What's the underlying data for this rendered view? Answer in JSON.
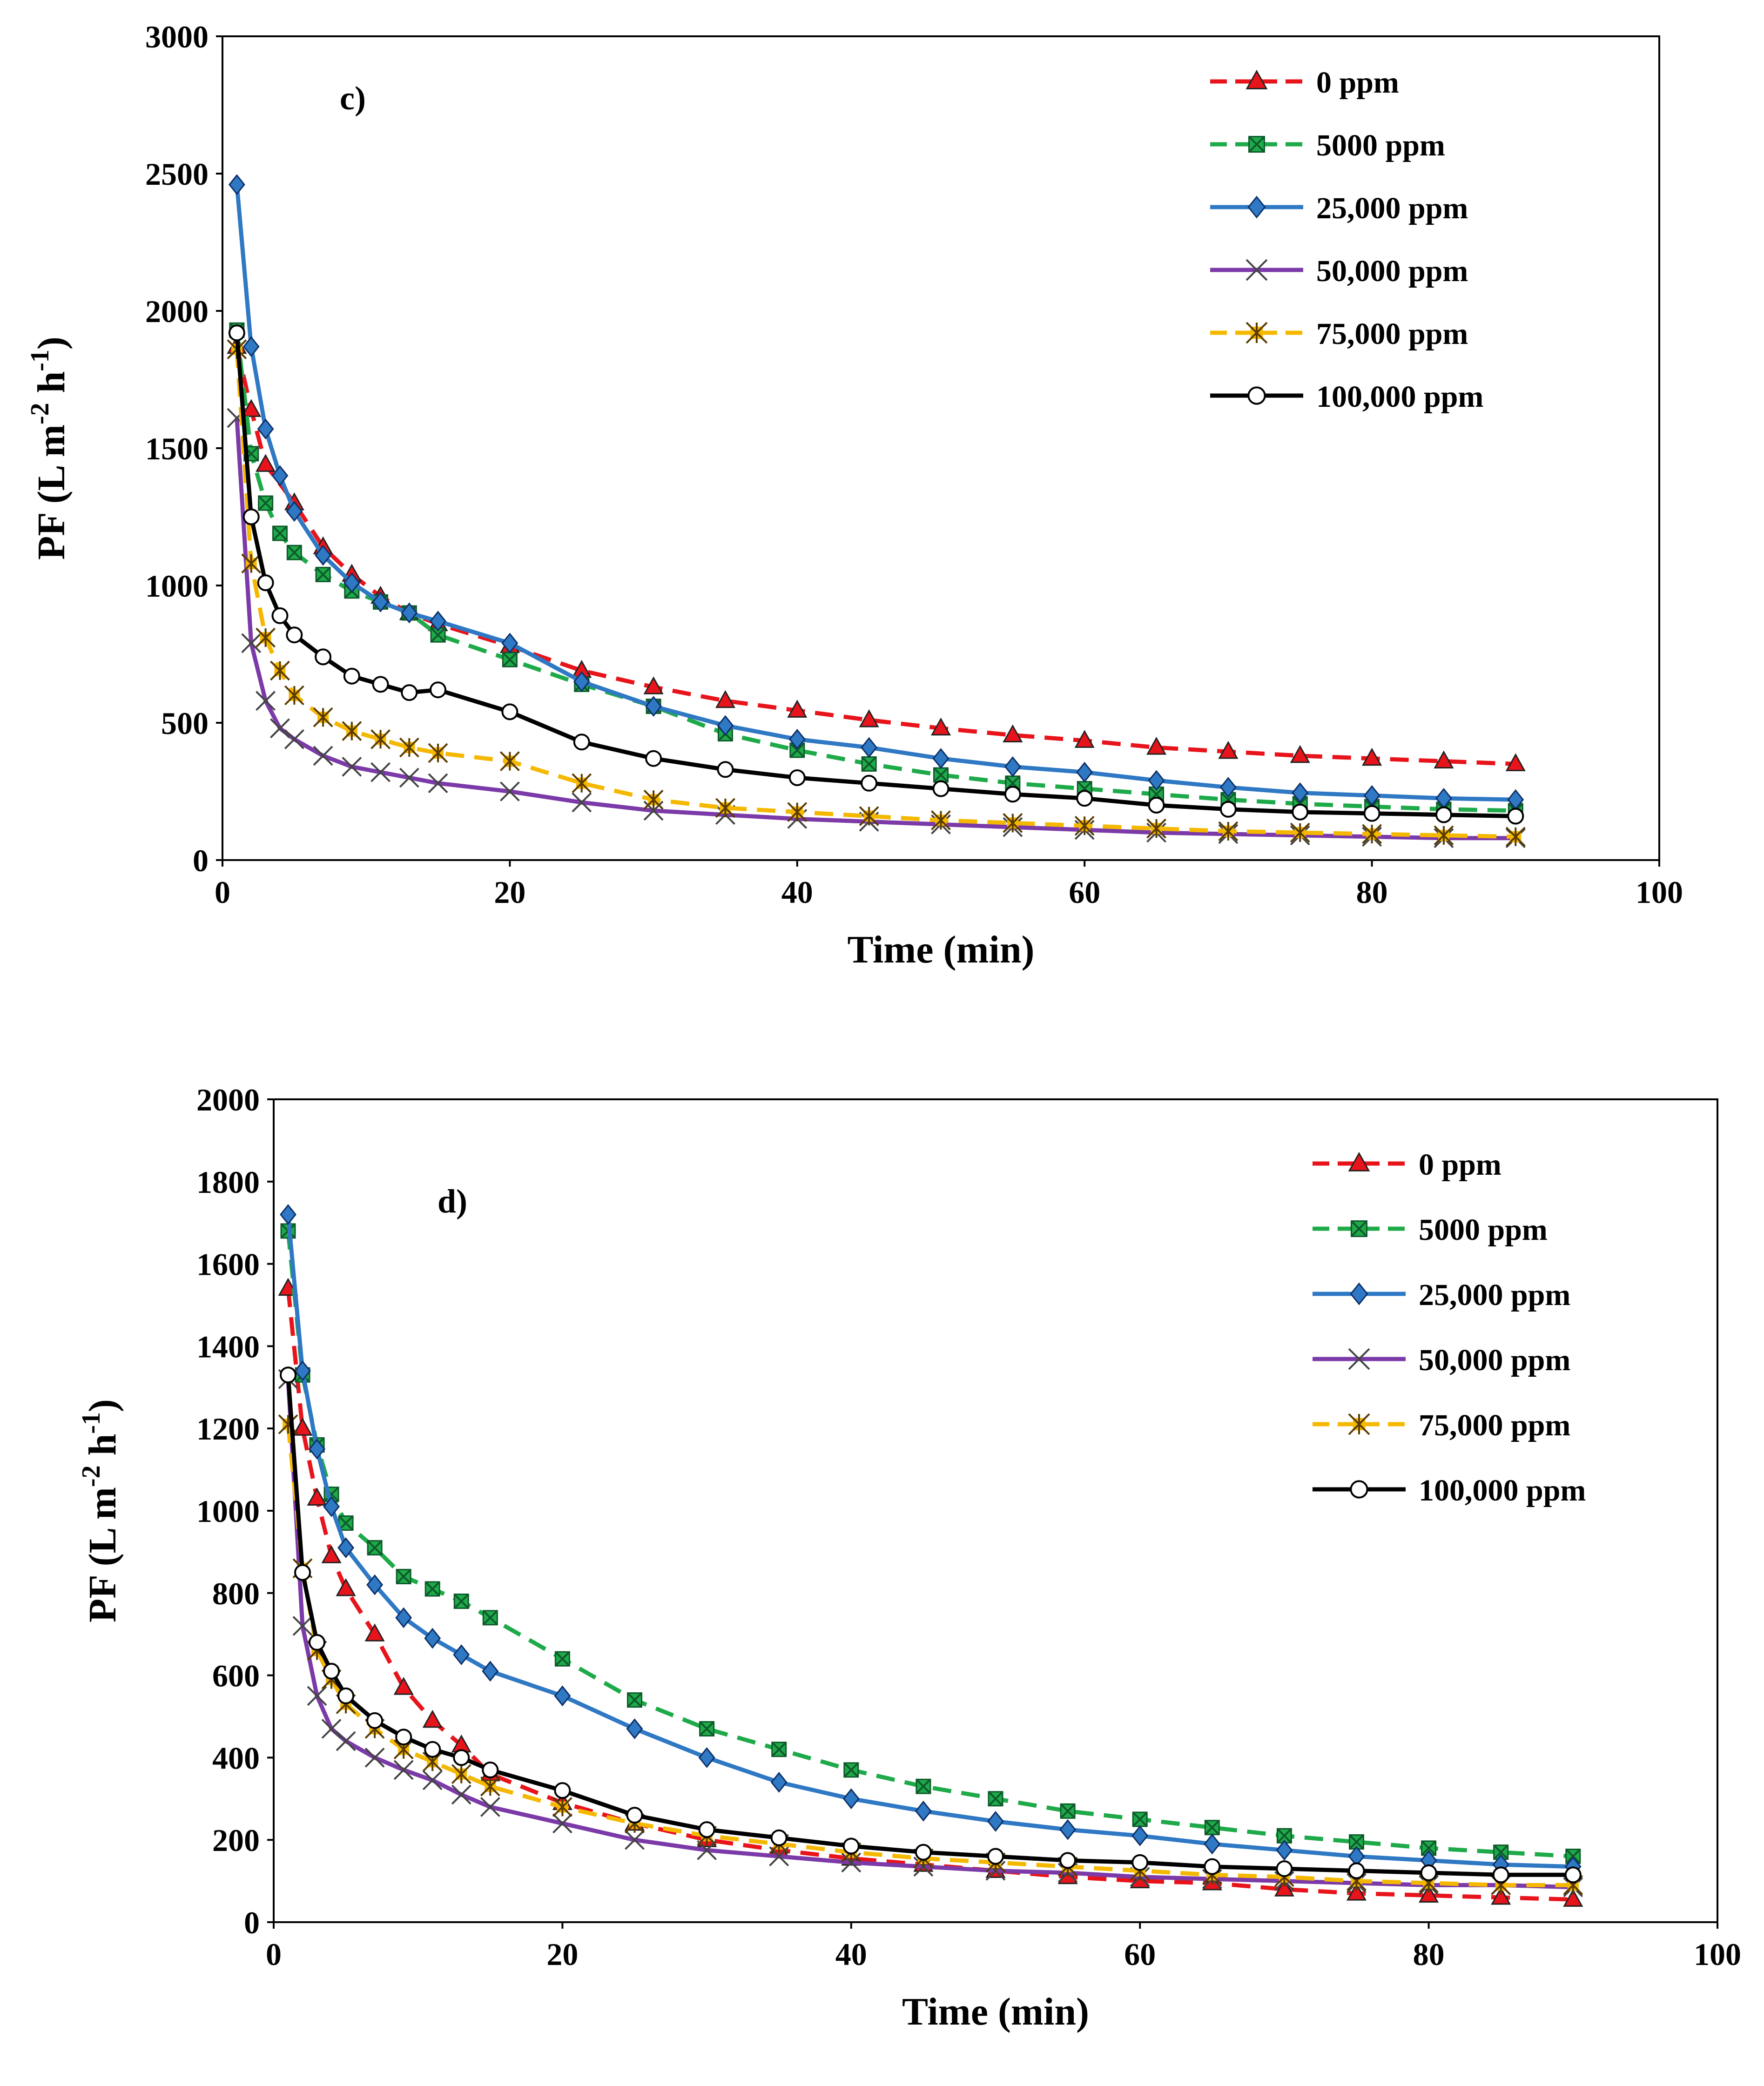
{
  "chart_data": [
    {
      "type": "line",
      "panel_label": "c)",
      "xlabel": "Time (min)",
      "ylabel": {
        "main": "PF (L m",
        "sup1": "-2",
        "mid": " h",
        "sup2": "-1",
        "end": ")"
      },
      "xlim": [
        0,
        100
      ],
      "ylim": [
        0,
        3000
      ],
      "xticks": [
        "0",
        "20",
        "40",
        "60",
        "80",
        "100"
      ],
      "yticks": [
        "0",
        "500",
        "1000",
        "1500",
        "2000",
        "2500",
        "3000"
      ],
      "grid": false,
      "legend": "top-right",
      "series": [
        {
          "name": "0 ppm",
          "color": "#e8141b",
          "dash": "dashed",
          "marker": "triangle",
          "x": [
            1,
            2,
            3,
            5,
            7,
            9,
            11,
            13,
            15,
            20,
            25,
            30,
            35,
            40,
            45,
            50,
            55,
            60,
            65,
            70,
            75,
            80,
            85,
            90
          ],
          "y": [
            1870,
            1640,
            1440,
            1300,
            1140,
            1040,
            960,
            900,
            860,
            780,
            690,
            630,
            580,
            545,
            510,
            480,
            455,
            435,
            410,
            395,
            380,
            370,
            360,
            350
          ]
        },
        {
          "name": "5000 ppm",
          "color": "#1faa4a",
          "dash": "dashed",
          "marker": "xsquare",
          "x": [
            1,
            2,
            3,
            4,
            5,
            7,
            9,
            11,
            13,
            15,
            20,
            25,
            30,
            35,
            40,
            45,
            50,
            55,
            60,
            65,
            70,
            75,
            80,
            85,
            90
          ],
          "y": [
            1930,
            1480,
            1300,
            1190,
            1120,
            1040,
            980,
            940,
            900,
            820,
            730,
            640,
            560,
            460,
            400,
            350,
            310,
            280,
            260,
            240,
            220,
            205,
            195,
            185,
            180
          ]
        },
        {
          "name": "25,000 ppm",
          "color": "#2e78c4",
          "dash": "solid",
          "marker": "diamond",
          "x": [
            1,
            2,
            3,
            4,
            5,
            7,
            9,
            11,
            13,
            15,
            20,
            25,
            30,
            35,
            40,
            45,
            50,
            55,
            60,
            65,
            70,
            75,
            80,
            85,
            90
          ],
          "y": [
            2460,
            1870,
            1570,
            1400,
            1270,
            1110,
            1010,
            940,
            900,
            870,
            790,
            650,
            560,
            490,
            440,
            410,
            370,
            340,
            320,
            290,
            265,
            245,
            235,
            225,
            220
          ]
        },
        {
          "name": "50,000 ppm",
          "color": "#7b3aa8",
          "dash": "solid",
          "marker": "x",
          "x": [
            1,
            2,
            3,
            4,
            5,
            7,
            9,
            11,
            13,
            15,
            20,
            25,
            30,
            35,
            40,
            45,
            50,
            55,
            60,
            65,
            70,
            75,
            80,
            85,
            90
          ],
          "y": [
            1610,
            790,
            580,
            480,
            440,
            380,
            340,
            320,
            300,
            280,
            250,
            210,
            180,
            165,
            150,
            140,
            130,
            120,
            110,
            100,
            95,
            90,
            85,
            80,
            80
          ]
        },
        {
          "name": "75,000 ppm",
          "color": "#f5b800",
          "dash": "dashed",
          "marker": "star",
          "x": [
            1,
            2,
            3,
            4,
            5,
            7,
            9,
            11,
            13,
            15,
            20,
            25,
            30,
            35,
            40,
            45,
            50,
            55,
            60,
            65,
            70,
            75,
            80,
            85,
            90
          ],
          "y": [
            1860,
            1080,
            810,
            690,
            600,
            520,
            470,
            440,
            410,
            390,
            360,
            280,
            220,
            190,
            175,
            160,
            145,
            135,
            125,
            115,
            105,
            100,
            95,
            90,
            85
          ]
        },
        {
          "name": "100,000 ppm",
          "color": "#000000",
          "dash": "solid",
          "marker": "circle",
          "x": [
            1,
            2,
            3,
            4,
            5,
            7,
            9,
            11,
            13,
            15,
            20,
            25,
            30,
            35,
            40,
            45,
            50,
            55,
            60,
            65,
            70,
            75,
            80,
            85,
            90
          ],
          "y": [
            1920,
            1250,
            1010,
            890,
            820,
            740,
            670,
            640,
            610,
            620,
            540,
            430,
            370,
            330,
            300,
            280,
            260,
            240,
            225,
            200,
            185,
            175,
            170,
            165,
            160
          ]
        }
      ]
    },
    {
      "type": "line",
      "panel_label": "d)",
      "xlabel": "Time (min)",
      "ylabel": {
        "main": "PF (L m",
        "sup1": "-2",
        "mid": " h",
        "sup2": "-1",
        "end": ")"
      },
      "xlim": [
        0,
        100
      ],
      "ylim": [
        0,
        2000
      ],
      "xticks": [
        "0",
        "20",
        "40",
        "60",
        "80",
        "100"
      ],
      "yticks": [
        "0",
        "200",
        "400",
        "600",
        "800",
        "1000",
        "1200",
        "1400",
        "1600",
        "1800",
        "2000"
      ],
      "grid": false,
      "legend": "top-right",
      "series": [
        {
          "name": "0 ppm",
          "color": "#e8141b",
          "dash": "dashed",
          "marker": "triangle",
          "x": [
            1,
            2,
            3,
            4,
            5,
            7,
            9,
            11,
            13,
            15,
            20,
            25,
            30,
            35,
            40,
            45,
            50,
            55,
            60,
            65,
            70,
            75,
            80,
            85,
            90
          ],
          "y": [
            1540,
            1200,
            1030,
            890,
            810,
            700,
            570,
            490,
            430,
            360,
            290,
            240,
            200,
            175,
            155,
            140,
            125,
            110,
            100,
            95,
            80,
            70,
            65,
            60,
            55
          ]
        },
        {
          "name": "5000 ppm",
          "color": "#1faa4a",
          "dash": "dashed",
          "marker": "xsquare",
          "x": [
            1,
            2,
            3,
            4,
            5,
            7,
            9,
            11,
            13,
            15,
            20,
            25,
            30,
            35,
            40,
            45,
            50,
            55,
            60,
            65,
            70,
            75,
            80,
            85,
            90
          ],
          "y": [
            1680,
            1330,
            1160,
            1040,
            970,
            910,
            840,
            810,
            780,
            740,
            640,
            540,
            470,
            420,
            370,
            330,
            300,
            270,
            250,
            230,
            210,
            195,
            180,
            170,
            160
          ]
        },
        {
          "name": "25,000 ppm",
          "color": "#2e78c4",
          "dash": "solid",
          "marker": "diamond",
          "x": [
            1,
            2,
            3,
            4,
            5,
            7,
            9,
            11,
            13,
            15,
            20,
            25,
            30,
            35,
            40,
            45,
            50,
            55,
            60,
            65,
            70,
            75,
            80,
            85,
            90
          ],
          "y": [
            1720,
            1340,
            1150,
            1010,
            910,
            820,
            740,
            690,
            650,
            610,
            550,
            470,
            400,
            340,
            300,
            270,
            245,
            225,
            210,
            190,
            175,
            160,
            150,
            140,
            135
          ]
        },
        {
          "name": "50,000 ppm",
          "color": "#7b3aa8",
          "dash": "solid",
          "marker": "x",
          "x": [
            1,
            2,
            3,
            4,
            5,
            7,
            9,
            11,
            13,
            15,
            20,
            25,
            30,
            35,
            40,
            45,
            50,
            55,
            60,
            65,
            70,
            75,
            80,
            85,
            90
          ],
          "y": [
            1320,
            720,
            550,
            470,
            440,
            400,
            370,
            345,
            310,
            280,
            240,
            200,
            175,
            160,
            145,
            135,
            125,
            120,
            110,
            105,
            100,
            95,
            90,
            90,
            85
          ]
        },
        {
          "name": "75,000 ppm",
          "color": "#f5b800",
          "dash": "dashed",
          "marker": "star",
          "x": [
            1,
            2,
            3,
            4,
            5,
            7,
            9,
            11,
            13,
            15,
            20,
            25,
            30,
            35,
            40,
            45,
            50,
            55,
            60,
            65,
            70,
            75,
            80,
            85,
            90
          ],
          "y": [
            1210,
            860,
            660,
            590,
            530,
            470,
            420,
            390,
            360,
            330,
            280,
            240,
            210,
            190,
            170,
            155,
            145,
            135,
            125,
            115,
            110,
            100,
            95,
            90,
            90
          ]
        },
        {
          "name": "100,000 ppm",
          "color": "#000000",
          "dash": "solid",
          "marker": "circle",
          "x": [
            1,
            2,
            3,
            4,
            5,
            7,
            9,
            11,
            13,
            15,
            20,
            25,
            30,
            35,
            40,
            45,
            50,
            55,
            60,
            65,
            70,
            75,
            80,
            85,
            90
          ],
          "y": [
            1330,
            850,
            680,
            610,
            550,
            490,
            450,
            420,
            400,
            370,
            320,
            260,
            225,
            205,
            185,
            170,
            160,
            150,
            145,
            135,
            130,
            125,
            120,
            115,
            115
          ]
        }
      ]
    }
  ]
}
